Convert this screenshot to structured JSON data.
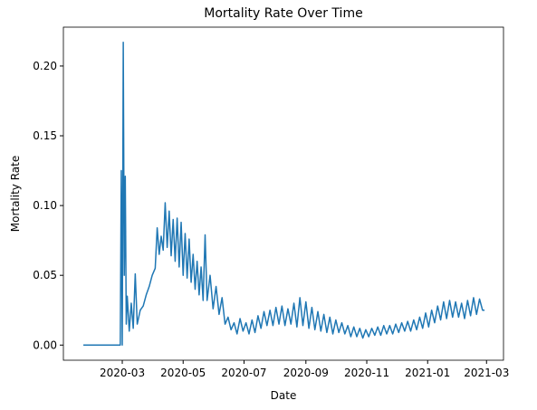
{
  "chart_data": {
    "type": "line",
    "title": "Mortality Rate Over Time",
    "x_label": "Date",
    "y_label": "Mortality Rate",
    "x": [
      "2020-01-22",
      "2020-02-05",
      "2020-02-20",
      "2020-02-28",
      "2020-02-29",
      "2020-03-01",
      "2020-03-02",
      "2020-03-03",
      "2020-03-04",
      "2020-03-05",
      "2020-03-06",
      "2020-03-08",
      "2020-03-10",
      "2020-03-12",
      "2020-03-14",
      "2020-03-16",
      "2020-03-19",
      "2020-03-22",
      "2020-03-25",
      "2020-03-28",
      "2020-03-31",
      "2020-04-03",
      "2020-04-05",
      "2020-04-07",
      "2020-04-09",
      "2020-04-11",
      "2020-04-13",
      "2020-04-15",
      "2020-04-17",
      "2020-04-19",
      "2020-04-21",
      "2020-04-23",
      "2020-04-25",
      "2020-04-27",
      "2020-04-29",
      "2020-05-01",
      "2020-05-03",
      "2020-05-05",
      "2020-05-07",
      "2020-05-09",
      "2020-05-11",
      "2020-05-13",
      "2020-05-15",
      "2020-05-17",
      "2020-05-19",
      "2020-05-21",
      "2020-05-23",
      "2020-05-25",
      "2020-05-28",
      "2020-05-31",
      "2020-06-03",
      "2020-06-06",
      "2020-06-09",
      "2020-06-12",
      "2020-06-15",
      "2020-06-18",
      "2020-06-21",
      "2020-06-24",
      "2020-06-27",
      "2020-06-30",
      "2020-07-03",
      "2020-07-06",
      "2020-07-09",
      "2020-07-12",
      "2020-07-15",
      "2020-07-18",
      "2020-07-21",
      "2020-07-24",
      "2020-07-27",
      "2020-07-30",
      "2020-08-02",
      "2020-08-05",
      "2020-08-08",
      "2020-08-11",
      "2020-08-14",
      "2020-08-17",
      "2020-08-20",
      "2020-08-23",
      "2020-08-26",
      "2020-08-29",
      "2020-09-01",
      "2020-09-04",
      "2020-09-07",
      "2020-09-10",
      "2020-09-13",
      "2020-09-16",
      "2020-09-19",
      "2020-09-22",
      "2020-09-25",
      "2020-09-28",
      "2020-10-01",
      "2020-10-04",
      "2020-10-07",
      "2020-10-10",
      "2020-10-13",
      "2020-10-16",
      "2020-10-19",
      "2020-10-22",
      "2020-10-25",
      "2020-10-28",
      "2020-10-31",
      "2020-11-03",
      "2020-11-06",
      "2020-11-09",
      "2020-11-12",
      "2020-11-15",
      "2020-11-18",
      "2020-11-21",
      "2020-11-24",
      "2020-11-27",
      "2020-11-30",
      "2020-12-03",
      "2020-12-06",
      "2020-12-09",
      "2020-12-12",
      "2020-12-15",
      "2020-12-18",
      "2020-12-21",
      "2020-12-24",
      "2020-12-27",
      "2020-12-30",
      "2021-01-02",
      "2021-01-05",
      "2021-01-08",
      "2021-01-11",
      "2021-01-14",
      "2021-01-17",
      "2021-01-20",
      "2021-01-23",
      "2021-01-26",
      "2021-01-29",
      "2021-02-01",
      "2021-02-04",
      "2021-02-07",
      "2021-02-10",
      "2021-02-13",
      "2021-02-16",
      "2021-02-19",
      "2021-02-22",
      "2021-02-25",
      "2021-02-27"
    ],
    "series": [
      {
        "name": "Mortality Rate",
        "color": "#1f77b4",
        "values": [
          0,
          0,
          0,
          0,
          0.125,
          0,
          0.217,
          0.05,
          0.121,
          0.015,
          0.035,
          0.01,
          0.03,
          0.012,
          0.051,
          0.015,
          0.025,
          0.028,
          0.036,
          0.042,
          0.05,
          0.055,
          0.084,
          0.065,
          0.078,
          0.068,
          0.102,
          0.07,
          0.096,
          0.064,
          0.09,
          0.06,
          0.091,
          0.056,
          0.088,
          0.05,
          0.08,
          0.048,
          0.076,
          0.045,
          0.065,
          0.04,
          0.06,
          0.036,
          0.056,
          0.032,
          0.079,
          0.032,
          0.05,
          0.026,
          0.042,
          0.022,
          0.034,
          0.015,
          0.02,
          0.011,
          0.016,
          0.008,
          0.019,
          0.01,
          0.016,
          0.008,
          0.018,
          0.009,
          0.021,
          0.012,
          0.024,
          0.014,
          0.025,
          0.014,
          0.027,
          0.015,
          0.028,
          0.014,
          0.026,
          0.015,
          0.03,
          0.013,
          0.034,
          0.014,
          0.031,
          0.012,
          0.027,
          0.011,
          0.024,
          0.01,
          0.022,
          0.009,
          0.02,
          0.008,
          0.018,
          0.009,
          0.016,
          0.008,
          0.014,
          0.006,
          0.013,
          0.006,
          0.012,
          0.005,
          0.011,
          0.006,
          0.012,
          0.007,
          0.013,
          0.007,
          0.014,
          0.008,
          0.014,
          0.008,
          0.015,
          0.009,
          0.016,
          0.01,
          0.017,
          0.01,
          0.018,
          0.011,
          0.02,
          0.012,
          0.023,
          0.013,
          0.025,
          0.016,
          0.028,
          0.018,
          0.031,
          0.019,
          0.032,
          0.02,
          0.031,
          0.02,
          0.03,
          0.019,
          0.032,
          0.021,
          0.034,
          0.022,
          0.033,
          0.025,
          0.025
        ]
      }
    ],
    "xlim": [
      "2020-01-02",
      "2021-03-18"
    ],
    "xticks": [
      {
        "value": "2020-03-01",
        "label": "2020-03"
      },
      {
        "value": "2020-05-01",
        "label": "2020-05"
      },
      {
        "value": "2020-07-01",
        "label": "2020-07"
      },
      {
        "value": "2020-09-01",
        "label": "2020-09"
      },
      {
        "value": "2020-11-01",
        "label": "2020-11"
      },
      {
        "value": "2021-01-01",
        "label": "2021-01"
      },
      {
        "value": "2021-03-01",
        "label": "2021-03"
      }
    ],
    "ylim": [
      -0.01085,
      0.22785
    ],
    "yticks": [
      {
        "value": 0,
        "label": "0.00"
      },
      {
        "value": 0.05,
        "label": "0.05"
      },
      {
        "value": 0.1,
        "label": "0.10"
      },
      {
        "value": 0.15,
        "label": "0.15"
      },
      {
        "value": 0.2,
        "label": "0.20"
      }
    ],
    "grid": false
  }
}
